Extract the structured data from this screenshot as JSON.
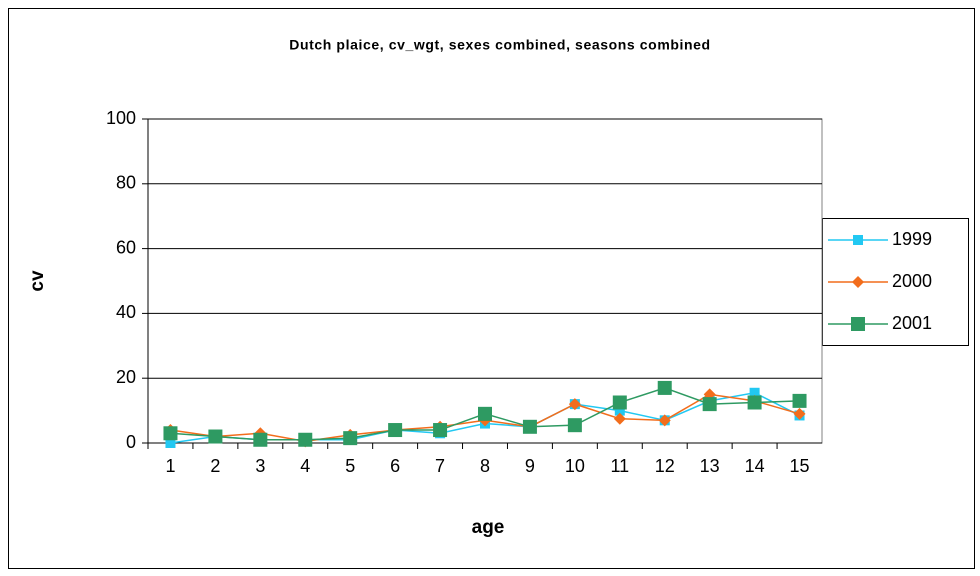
{
  "chart_data": {
    "type": "line",
    "title": "Dutch plaice, cv_wgt, sexes combined, seasons combined",
    "x_label": "age",
    "y_label": "cv",
    "categories": [
      1,
      2,
      3,
      4,
      5,
      6,
      7,
      8,
      9,
      10,
      11,
      12,
      13,
      14,
      15
    ],
    "series": [
      {
        "name": "1999",
        "color": "#22c8f2",
        "marker": "square",
        "values": [
          0,
          2,
          1,
          1,
          1,
          4,
          3,
          6,
          5,
          12,
          10,
          7,
          13,
          15.5,
          8.5
        ]
      },
      {
        "name": "2000",
        "color": "#f26d1c",
        "marker": "diamond",
        "values": [
          4,
          2,
          3,
          0.5,
          2.5,
          4,
          5,
          7,
          5,
          12,
          7.5,
          7,
          15,
          13,
          9
        ]
      },
      {
        "name": "2001",
        "color": "#2e9a62",
        "marker": "bigsquare",
        "values": [
          3,
          2,
          1,
          1,
          1.5,
          4,
          4,
          9,
          5,
          5.5,
          12.5,
          17,
          12,
          12.5,
          13
        ]
      }
    ],
    "ylim": [
      0,
      100
    ],
    "yticks": [
      0,
      20,
      40,
      60,
      80,
      100
    ],
    "grid": true,
    "legend": "right"
  }
}
